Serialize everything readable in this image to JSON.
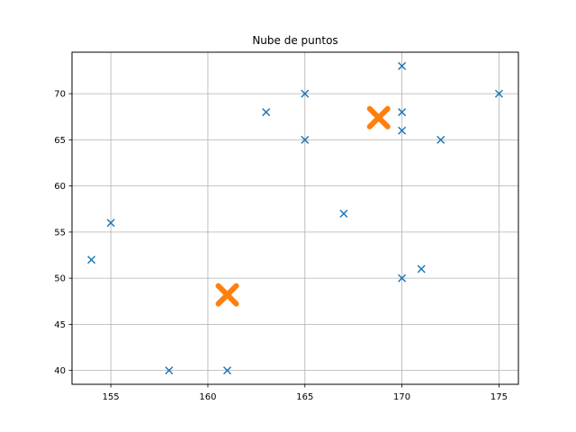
{
  "chart_data": {
    "type": "scatter",
    "title": "Nube de puntos",
    "xlabel": "",
    "ylabel": "",
    "xlim": [
      153,
      176
    ],
    "ylim": [
      38.5,
      74.5
    ],
    "xticks": [
      155,
      160,
      165,
      170,
      175
    ],
    "yticks": [
      40,
      45,
      50,
      55,
      60,
      65,
      70
    ],
    "grid": true,
    "series": [
      {
        "marker": "x",
        "color": "#1f77b4",
        "points": [
          [
            154,
            52
          ],
          [
            155,
            56
          ],
          [
            158,
            40
          ],
          [
            161,
            40
          ],
          [
            163,
            68
          ],
          [
            165,
            70
          ],
          [
            165,
            65
          ],
          [
            167,
            57
          ],
          [
            170,
            73
          ],
          [
            170,
            68
          ],
          [
            170,
            66
          ],
          [
            170,
            50
          ],
          [
            171,
            51
          ],
          [
            172,
            65
          ],
          [
            175,
            70
          ]
        ]
      },
      {
        "marker": "x-large",
        "color": "#ff7f0e",
        "points": [
          [
            161,
            48.2
          ],
          [
            168.8,
            67.4
          ]
        ]
      }
    ]
  }
}
